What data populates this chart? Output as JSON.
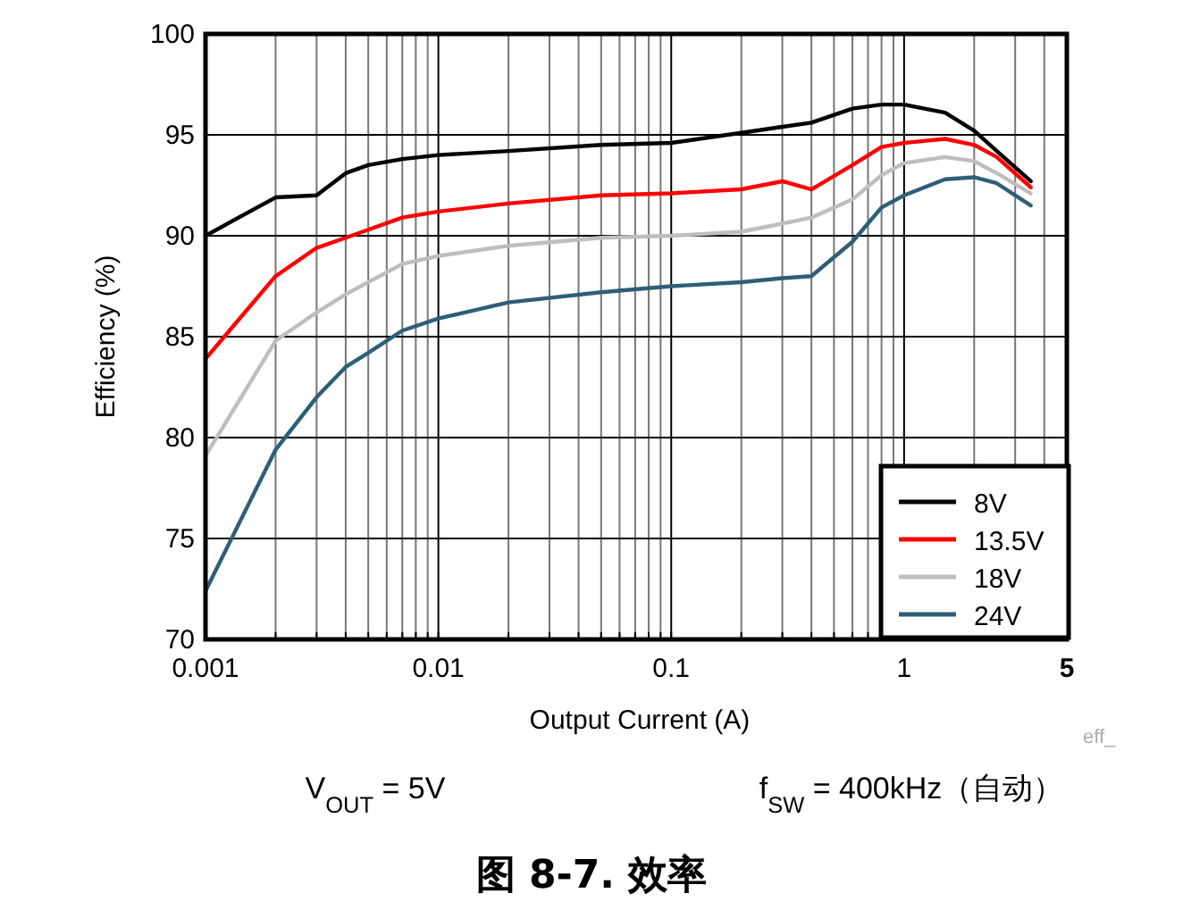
{
  "chart_data": {
    "type": "line",
    "title": "图 8-7. 效率",
    "xlabel": "Output Current (A)",
    "ylabel": "Efficiency (%)",
    "annotations": [
      "eff_",
      "V$_{OUT}$ = 5V",
      "f$_{SW}$ = 400kHz（自动）"
    ],
    "x": [
      0.001,
      0.002,
      0.003,
      0.004,
      0.005,
      0.007,
      0.01,
      0.02,
      0.05,
      0.1,
      0.2,
      0.3,
      0.4,
      0.6,
      0.8,
      1,
      1.5,
      2,
      2.5,
      3.5
    ],
    "series": [
      {
        "name": "8V",
        "color": "#000000",
        "values": [
          90.0,
          91.9,
          92.0,
          93.1,
          93.5,
          93.8,
          94.0,
          94.2,
          94.5,
          94.6,
          95.1,
          95.4,
          95.6,
          96.3,
          96.5,
          96.5,
          96.1,
          95.2,
          94.2,
          92.7
        ]
      },
      {
        "name": "13.5V",
        "color": "#ff0000",
        "values": [
          83.9,
          88.0,
          89.4,
          89.9,
          90.3,
          90.9,
          91.2,
          91.6,
          92.0,
          92.1,
          92.3,
          92.7,
          92.3,
          93.5,
          94.4,
          94.6,
          94.8,
          94.5,
          93.9,
          92.4
        ]
      },
      {
        "name": "18V",
        "color": "#bebebe",
        "values": [
          79.1,
          84.8,
          86.2,
          87.1,
          87.7,
          88.6,
          89.0,
          89.5,
          89.9,
          90.0,
          90.2,
          90.6,
          90.9,
          91.8,
          93.0,
          93.6,
          93.9,
          93.7,
          93.1,
          92.1
        ]
      },
      {
        "name": "24V",
        "color": "#2e5f78",
        "values": [
          72.4,
          79.4,
          82.0,
          83.5,
          84.2,
          85.3,
          85.9,
          86.7,
          87.2,
          87.5,
          87.7,
          87.9,
          88.0,
          89.7,
          91.4,
          92.0,
          92.8,
          92.9,
          92.6,
          91.5
        ]
      }
    ],
    "log": "x",
    "xlim": [
      0.001,
      5
    ],
    "ylim": [
      70,
      100
    ],
    "xticks": [
      0.001,
      {
        "value": 0.002,
        "label": null
      },
      {
        "value": 0.003,
        "label": null
      },
      {
        "value": 0.004,
        "label": null
      },
      {
        "value": 0.005,
        "label": null
      },
      {
        "value": 0.006,
        "label": null
      },
      {
        "value": 0.007,
        "label": null
      },
      {
        "value": 0.008,
        "label": null
      },
      {
        "value": 0.009,
        "label": null
      },
      0.01,
      {
        "value": 0.02,
        "label": null
      },
      {
        "value": 0.03,
        "label": null
      },
      {
        "value": 0.04,
        "label": null
      },
      {
        "value": 0.05,
        "label": null
      },
      {
        "value": 0.06,
        "label": null
      },
      {
        "value": 0.07,
        "label": null
      },
      {
        "value": 0.08,
        "label": null
      },
      {
        "value": 0.09,
        "label": null
      },
      0.1,
      {
        "value": 0.2,
        "label": null
      },
      {
        "value": 0.3,
        "label": null
      },
      {
        "value": 0.4,
        "label": null
      },
      {
        "value": 0.5,
        "label": null
      },
      {
        "value": 0.6,
        "label": null
      },
      {
        "value": 0.7,
        "label": null
      },
      {
        "value": 0.8,
        "label": null
      },
      {
        "value": 0.9,
        "label": null
      },
      1,
      {
        "value": 2,
        "label": null
      },
      {
        "value": 3,
        "label": null
      },
      {
        "value": 4,
        "label": null
      },
      5
    ],
    "yticks": [
      70,
      75,
      80,
      85,
      90,
      95,
      100
    ],
    "grid": true,
    "legend": "bottom right",
    "marker": "none",
    "line_style": "solid"
  }
}
